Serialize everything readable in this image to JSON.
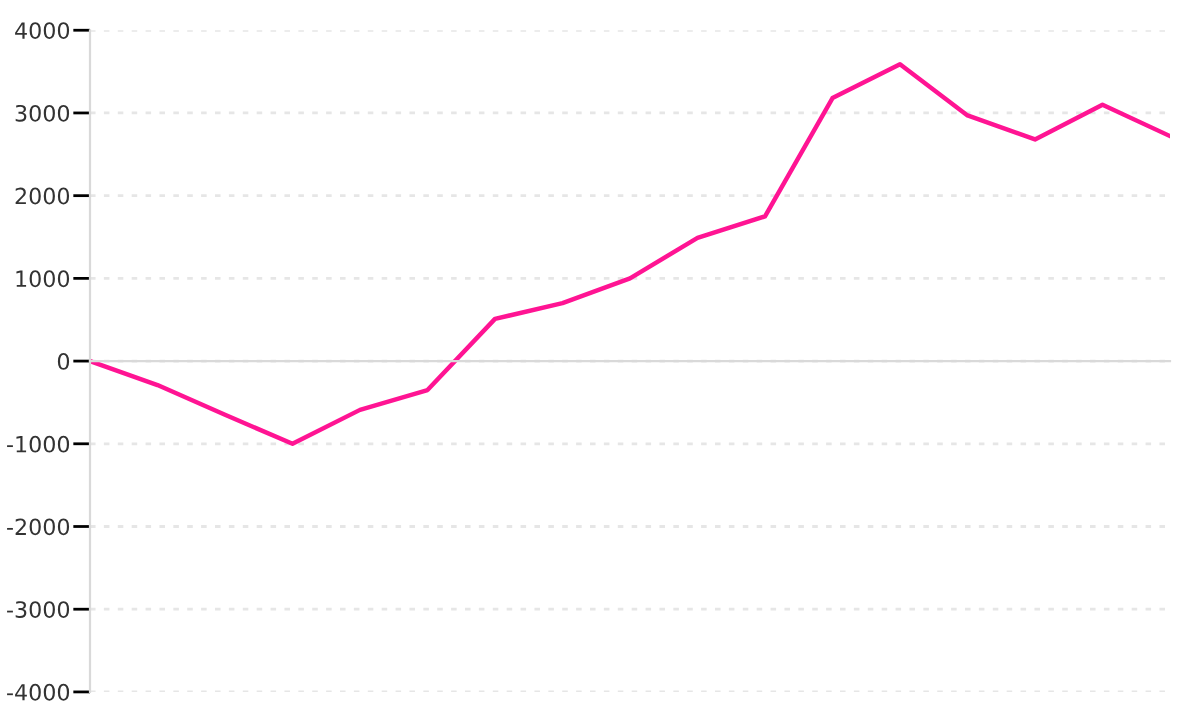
{
  "chart_data": {
    "type": "line",
    "categories": [
      null,
      null,
      null,
      null,
      null,
      null,
      null,
      null,
      null,
      null,
      null,
      null,
      null,
      null,
      null,
      null,
      null
    ],
    "series": [
      {
        "color": "#ff1493",
        "values": [
          0,
          -290,
          -650,
          -1000,
          -590,
          -350,
          510,
          700,
          1000,
          1490,
          1750,
          3180,
          3590,
          2970,
          2680,
          3100,
          2720
        ]
      }
    ],
    "ylim": [
      -4000,
      4000
    ],
    "yticks": [
      -4000,
      -3000,
      -2000,
      -1000,
      0,
      1000,
      2000,
      3000,
      4000
    ],
    "tick_labels": "y",
    "grid": "y",
    "marker": "none",
    "line_style": "solid"
  }
}
